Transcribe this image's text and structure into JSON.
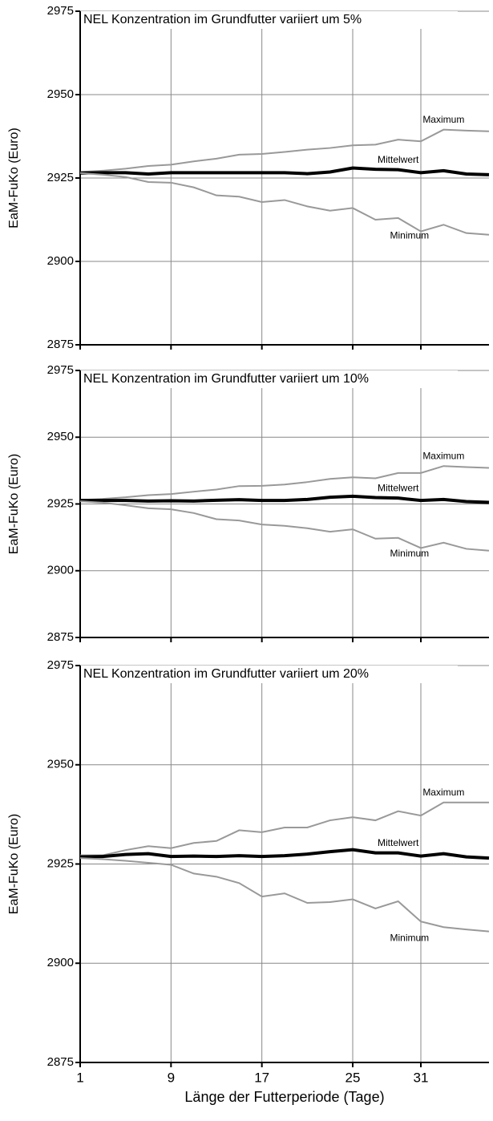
{
  "chart_data": [
    {
      "type": "line",
      "title": "NEL Konzentration im Grundfutter variiert um 5%",
      "y_label": "EaM-FuKo (Euro)",
      "x": [
        1,
        3,
        5,
        7,
        9,
        11,
        13,
        15,
        17,
        19,
        21,
        23,
        25,
        27,
        29,
        31,
        33,
        35,
        37
      ],
      "xlim": [
        1,
        37
      ],
      "xticks": [
        1,
        9,
        17,
        25,
        31
      ],
      "ylim": [
        2875,
        2975
      ],
      "yticks": [
        2875,
        2900,
        2925,
        2950,
        2975
      ],
      "grid": true,
      "series": [
        {
          "name": "Maximum",
          "color": "#999999",
          "values": [
            2926.8,
            2927.2,
            2927.8,
            2928.6,
            2929.0,
            2930.0,
            2930.8,
            2932.0,
            2932.2,
            2932.8,
            2933.5,
            2934.0,
            2934.8,
            2935.0,
            2936.5,
            2936.0,
            2939.5,
            2939.2,
            2939.0
          ]
        },
        {
          "name": "Mittelwert",
          "color": "#000000",
          "values": [
            2926.5,
            2926.6,
            2926.6,
            2926.2,
            2926.6,
            2926.6,
            2926.6,
            2926.6,
            2926.6,
            2926.6,
            2926.3,
            2926.8,
            2928.0,
            2927.6,
            2927.5,
            2926.6,
            2927.2,
            2926.2,
            2926.0
          ]
        },
        {
          "name": "Minimum",
          "color": "#999999",
          "values": [
            2926.5,
            2926.0,
            2925.3,
            2923.8,
            2923.6,
            2922.2,
            2919.8,
            2919.4,
            2917.8,
            2918.4,
            2916.5,
            2915.2,
            2916.0,
            2912.5,
            2913.0,
            2909.0,
            2911.0,
            2908.5,
            2908.0
          ]
        }
      ]
    },
    {
      "type": "line",
      "title": "NEL Konzentration im Grundfutter variiert um 10%",
      "y_label": "EaM-FuKo (Euro)",
      "x": [
        1,
        3,
        5,
        7,
        9,
        11,
        13,
        15,
        17,
        19,
        21,
        23,
        25,
        27,
        29,
        31,
        33,
        35,
        37
      ],
      "xlim": [
        1,
        37
      ],
      "xticks": [
        1,
        9,
        17,
        25,
        31
      ],
      "ylim": [
        2875,
        2975
      ],
      "yticks": [
        2875,
        2900,
        2925,
        2950,
        2975
      ],
      "grid": true,
      "series": [
        {
          "name": "Maximum",
          "color": "#999999",
          "values": [
            2926.5,
            2926.9,
            2927.5,
            2928.3,
            2928.7,
            2929.6,
            2930.4,
            2931.7,
            2931.8,
            2932.3,
            2933.2,
            2934.4,
            2935.0,
            2934.6,
            2936.6,
            2936.6,
            2939.2,
            2938.8,
            2938.5
          ]
        },
        {
          "name": "Mittelwert",
          "color": "#000000",
          "values": [
            2926.3,
            2926.3,
            2926.3,
            2926.1,
            2926.2,
            2926.1,
            2926.4,
            2926.6,
            2926.3,
            2926.3,
            2926.7,
            2927.5,
            2927.9,
            2927.4,
            2927.2,
            2926.3,
            2926.7,
            2925.9,
            2925.6
          ]
        },
        {
          "name": "Minimum",
          "color": "#999999",
          "values": [
            2926.0,
            2925.5,
            2924.5,
            2923.4,
            2923.0,
            2921.6,
            2919.3,
            2918.8,
            2917.3,
            2916.8,
            2915.9,
            2914.6,
            2915.5,
            2912.0,
            2912.3,
            2908.5,
            2910.5,
            2908.2,
            2907.5
          ]
        }
      ]
    },
    {
      "type": "line",
      "title": "NEL Konzentration im Grundfutter variiert um 20%",
      "y_label": "EaM-FuKo (Euro)",
      "x_label": "Länge der Futterperiode (Tage)",
      "x": [
        1,
        3,
        5,
        7,
        9,
        11,
        13,
        15,
        17,
        19,
        21,
        23,
        25,
        27,
        29,
        31,
        33,
        35,
        37
      ],
      "xlim": [
        1,
        37
      ],
      "xticks": [
        1,
        9,
        17,
        25,
        31
      ],
      "ylim": [
        2875,
        2975
      ],
      "yticks": [
        2875,
        2900,
        2925,
        2950,
        2975
      ],
      "grid": true,
      "series": [
        {
          "name": "Maximum",
          "color": "#999999",
          "values": [
            2927.2,
            2927.2,
            2928.5,
            2929.5,
            2929.0,
            2930.3,
            2930.8,
            2933.5,
            2933.0,
            2934.2,
            2934.2,
            2936.0,
            2936.8,
            2936.0,
            2938.3,
            2937.2,
            2940.5,
            2940.5,
            2940.5
          ]
        },
        {
          "name": "Mittelwert",
          "color": "#000000",
          "values": [
            2926.8,
            2926.9,
            2927.4,
            2927.6,
            2926.9,
            2927.0,
            2926.9,
            2927.1,
            2926.9,
            2927.1,
            2927.5,
            2928.1,
            2928.6,
            2927.8,
            2927.8,
            2927.0,
            2927.6,
            2926.8,
            2926.5
          ]
        },
        {
          "name": "Minimum",
          "color": "#999999",
          "values": [
            2926.5,
            2926.2,
            2925.8,
            2925.3,
            2924.8,
            2922.6,
            2921.8,
            2920.2,
            2916.8,
            2917.6,
            2915.2,
            2915.4,
            2916.1,
            2913.8,
            2915.6,
            2910.5,
            2909.1,
            2908.5,
            2908.0
          ]
        }
      ]
    }
  ]
}
